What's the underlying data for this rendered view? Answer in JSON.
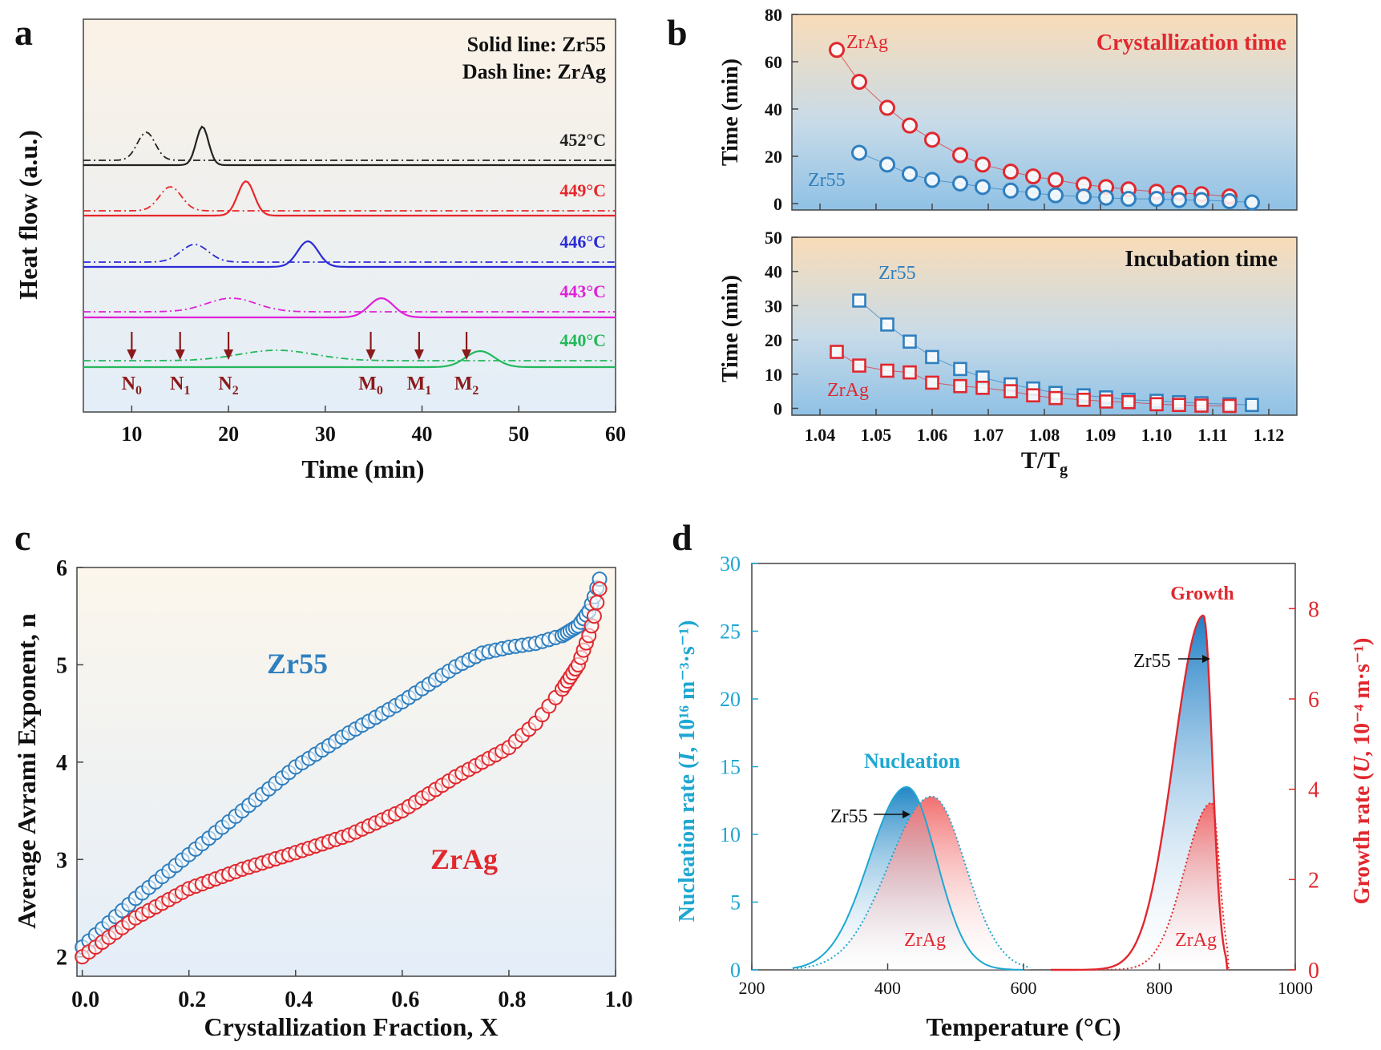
{
  "chart_data": [
    {
      "panel": "a",
      "type": "line",
      "xlabel": "Time (min)",
      "ylabel": "Heat flow (a.u.)",
      "xlim": [
        5,
        60
      ],
      "xticks": [
        10,
        20,
        30,
        40,
        50,
        60
      ],
      "legend": [
        "Solid line: Zr55",
        "Dash line: ZrAg"
      ],
      "series": [
        {
          "name": "452°C",
          "color": "#222222",
          "zr55_peak_min": 17.3,
          "zrag_peak_min": 11.5
        },
        {
          "name": "449°C",
          "color": "#e8272a",
          "zr55_peak_min": 21.8,
          "zrag_peak_min": 14.0
        },
        {
          "name": "446°C",
          "color": "#2b2bd6",
          "zr55_peak_min": 28.2,
          "zrag_peak_min": 16.5
        },
        {
          "name": "443°C",
          "color": "#e020d8",
          "zr55_peak_min": 35.8,
          "zrag_peak_min": 20.3
        },
        {
          "name": "440°C",
          "color": "#23b85a",
          "zr55_peak_min": 46.0,
          "zrag_peak_min": 25.0
        }
      ],
      "markers": [
        {
          "base": "N",
          "sub": "0",
          "x": 10
        },
        {
          "base": "N",
          "sub": "1",
          "x": 15
        },
        {
          "base": "N",
          "sub": "2",
          "x": 20
        },
        {
          "base": "M",
          "sub": "0",
          "x": 34.7
        },
        {
          "base": "M",
          "sub": "1",
          "x": 39.7
        },
        {
          "base": "M",
          "sub": "2",
          "x": 44.6
        }
      ]
    },
    {
      "panel": "b-top",
      "type": "scatter",
      "title": "Crystallization time",
      "ylabel": "Time (min)",
      "ylim": [
        0,
        80
      ],
      "yticks": [
        0,
        20,
        40,
        60,
        80
      ],
      "xlim": [
        1.035,
        1.125
      ],
      "series": [
        {
          "name": "ZrAg",
          "x": [
            1.043,
            1.047,
            1.052,
            1.056,
            1.06,
            1.065,
            1.069,
            1.074,
            1.078,
            1.082,
            1.087,
            1.091,
            1.095,
            1.1,
            1.104,
            1.108,
            1.113
          ],
          "values": [
            65,
            51.5,
            40.5,
            33,
            27,
            20.5,
            16.5,
            13.5,
            11.5,
            10,
            8,
            7,
            6,
            5,
            4.5,
            4,
            3
          ]
        },
        {
          "name": "Zr55",
          "x": [
            1.047,
            1.052,
            1.056,
            1.06,
            1.065,
            1.069,
            1.074,
            1.078,
            1.082,
            1.087,
            1.091,
            1.095,
            1.1,
            1.104,
            1.108,
            1.113,
            1.117
          ],
          "values": [
            21.5,
            16.5,
            12.5,
            10,
            8.5,
            7,
            5.5,
            4.5,
            3.5,
            3,
            2.5,
            2,
            2,
            1.5,
            1.5,
            1,
            0.5
          ]
        }
      ]
    },
    {
      "panel": "b-bottom",
      "type": "scatter",
      "title": "Incubation time",
      "xlabel_base": "T/T",
      "xlabel_sub": "g",
      "ylabel": "Time (min)",
      "ylim": [
        -2,
        50
      ],
      "yticks": [
        0,
        10,
        20,
        30,
        40,
        50
      ],
      "xlim": [
        1.035,
        1.125
      ],
      "xticks": [
        "1.04",
        "1.05",
        "1.06",
        "1.07",
        "1.08",
        "1.09",
        "1.10",
        "1.11",
        "1.12"
      ],
      "series": [
        {
          "name": "Zr55",
          "x": [
            1.047,
            1.052,
            1.056,
            1.06,
            1.065,
            1.069,
            1.074,
            1.078,
            1.082,
            1.087,
            1.091,
            1.095,
            1.1,
            1.104,
            1.108,
            1.113,
            1.117
          ],
          "values": [
            31.5,
            24.5,
            19.5,
            15,
            11.5,
            9,
            7,
            5.8,
            4.5,
            3.8,
            3.2,
            2.5,
            2.2,
            1.8,
            1.5,
            1.2,
            1
          ]
        },
        {
          "name": "ZrAg",
          "x": [
            1.043,
            1.047,
            1.052,
            1.056,
            1.06,
            1.065,
            1.069,
            1.074,
            1.078,
            1.082,
            1.087,
            1.091,
            1.095,
            1.1,
            1.104,
            1.108,
            1.113
          ],
          "values": [
            16.5,
            12.5,
            11,
            10.5,
            7.5,
            6.5,
            6,
            5,
            3.8,
            3,
            2.5,
            2,
            1.8,
            1.2,
            1,
            0.8,
            0.7
          ]
        }
      ]
    },
    {
      "panel": "c",
      "type": "scatter",
      "xlabel": "Crystallization Fraction, X",
      "ylabel": "Average Avrami Exponent, n",
      "xlim": [
        -0.01,
        1.0
      ],
      "ylim": [
        1.8,
        6.0
      ],
      "xticks": [
        "0.0",
        "0.2",
        "0.4",
        "0.6",
        "0.8",
        "1.0"
      ],
      "yticks": [
        "2",
        "3",
        "4",
        "5",
        "6"
      ],
      "series": [
        {
          "name": "Zr55",
          "x": [
            0,
            0.1,
            0.2,
            0.3,
            0.4,
            0.5,
            0.6,
            0.7,
            0.75,
            0.8,
            0.85,
            0.9,
            0.93,
            0.95,
            0.96,
            0.97
          ],
          "values": [
            2.1,
            2.6,
            3.05,
            3.5,
            3.95,
            4.3,
            4.62,
            4.98,
            5.12,
            5.18,
            5.22,
            5.3,
            5.4,
            5.55,
            5.7,
            5.88
          ]
        },
        {
          "name": "ZrAg",
          "x": [
            0,
            0.1,
            0.2,
            0.3,
            0.4,
            0.5,
            0.6,
            0.7,
            0.8,
            0.85,
            0.9,
            0.93,
            0.95,
            0.96,
            0.97
          ],
          "values": [
            2.0,
            2.4,
            2.7,
            2.9,
            3.07,
            3.25,
            3.5,
            3.85,
            4.15,
            4.4,
            4.75,
            5.0,
            5.3,
            5.5,
            5.78
          ]
        }
      ]
    },
    {
      "panel": "d",
      "type": "area",
      "xlabel": "Temperature (°C)",
      "ylabel_left": "Nucleation rate (I, 10¹⁶ m⁻³·s⁻¹)",
      "ylabel_right": "Growth rate (U, 10⁻⁴ m·s⁻¹)",
      "xlim": [
        200,
        1000
      ],
      "ylim_left": [
        0,
        30
      ],
      "ylim_right": [
        0,
        9
      ],
      "xticks": [
        200,
        400,
        600,
        800,
        1000
      ],
      "yticks_left": [
        0,
        5,
        10,
        15,
        20,
        25,
        30
      ],
      "yticks_right": [
        0,
        2,
        4,
        6,
        8
      ],
      "nucleation": [
        {
          "name": "Zr55",
          "peak_T": 428,
          "peak_I": 13.5
        },
        {
          "name": "ZrAg",
          "peak_T": 465,
          "peak_I": 12.8
        }
      ],
      "growth": [
        {
          "name": "Zr55",
          "peak_T": 865,
          "peak_U": 7.85
        },
        {
          "name": "ZrAg",
          "peak_T": 877,
          "peak_U": 3.7
        }
      ]
    }
  ],
  "labels": {
    "panel_a": "a",
    "panel_b": "b",
    "panel_c": "c",
    "panel_d": "d",
    "a_legend_solid": "Solid line: Zr55",
    "a_legend_dash": "Dash line: ZrAg",
    "a_xlabel": "Time (min)",
    "a_ylabel": "Heat flow (a.u.)",
    "b_top_title": "Crystallization time",
    "b_bottom_title": "Incubation time",
    "b_ylabel": "Time (min)",
    "b_xlabel_base": "T/T",
    "b_xlabel_sub": "g",
    "zr55": "Zr55",
    "zrag": "ZrAg",
    "c_xlabel": "Crystallization Fraction, X",
    "c_ylabel": "Average Avrami Exponent, n",
    "d_nucleation": "Nucleation",
    "d_growth": "Growth",
    "d_xlabel": "Temperature (°C)",
    "d_ylabel_left_pre": "Nucleation rate (",
    "d_ylabel_left_sym": "I",
    "d_ylabel_left_post": ", 10¹⁶ m⁻³·s⁻¹)",
    "d_ylabel_right_pre": "Growth rate (",
    "d_ylabel_right_sym": "U",
    "d_ylabel_right_post": ", 10⁻⁴ m·s⁻¹)"
  },
  "colors": {
    "zr55_blue": "#2f7fbf",
    "zrag_red": "#e0282e",
    "nucleation_cyan": "#1ea7d2",
    "marker_red": "#8b1a1a"
  }
}
